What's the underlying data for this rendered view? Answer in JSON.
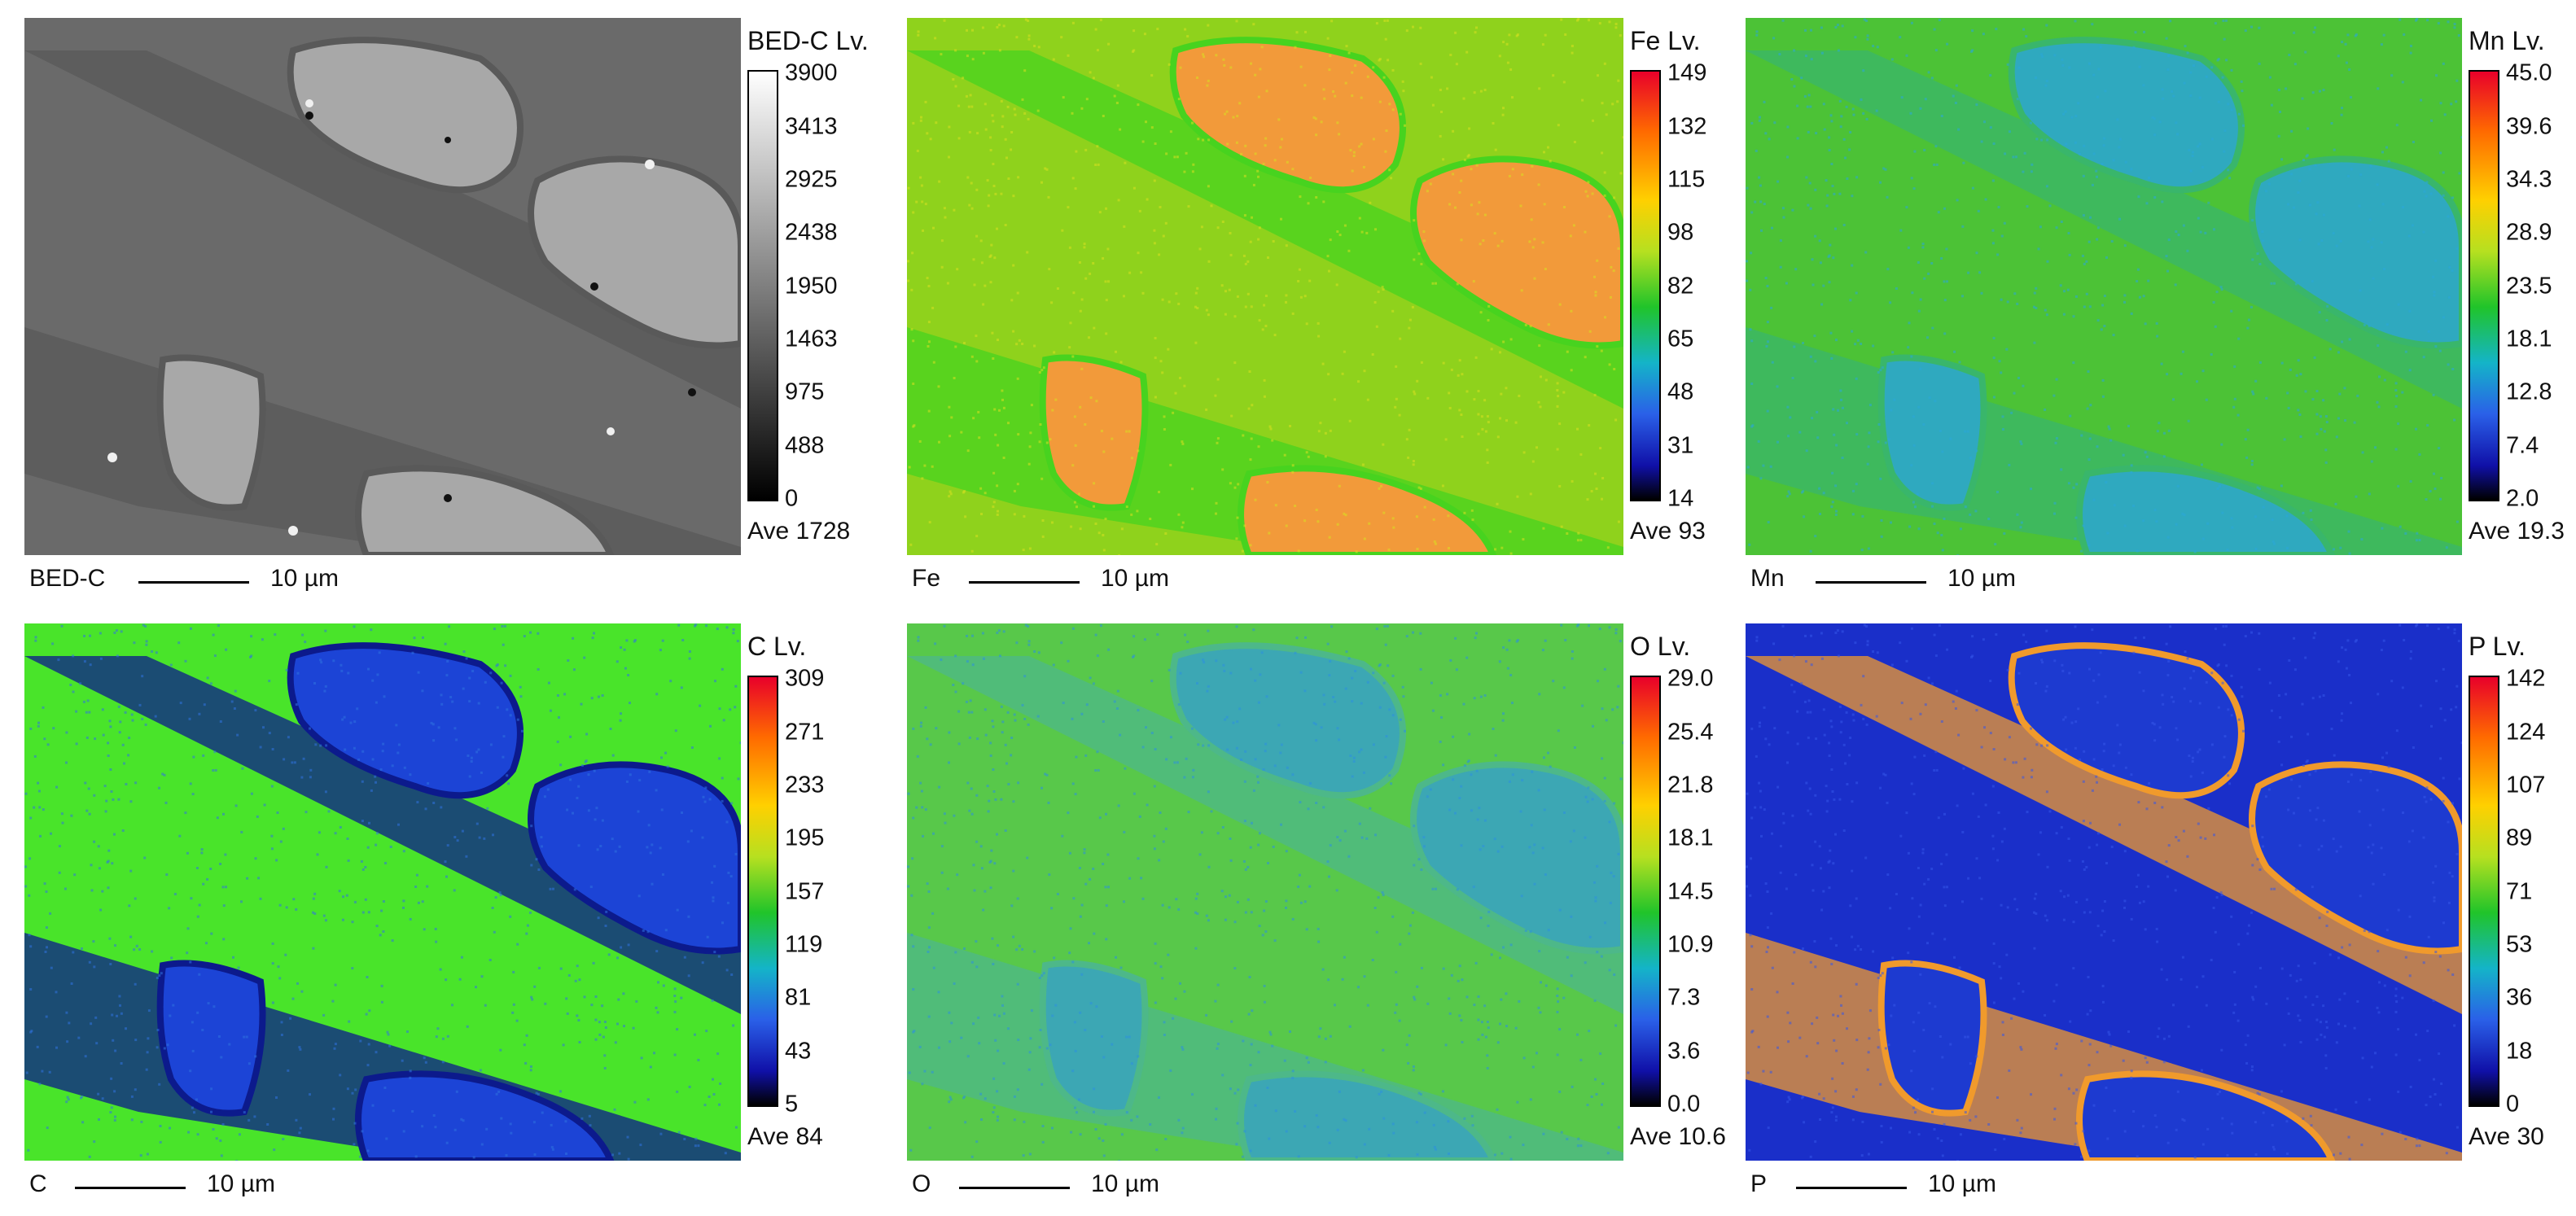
{
  "panels": [
    {
      "id": "bed",
      "label": "BED-C",
      "lv_label": "BED-C  Lv.",
      "colormap": "gray",
      "ticks": [
        "3900",
        "3413",
        "2925",
        "2438",
        "1950",
        "1463",
        "975",
        "488",
        "0"
      ],
      "average": "Ave 1728",
      "scale_label": "10 µm",
      "colors": {
        "matrix": "#6a6a6a",
        "particle": "#a8a8a8",
        "border": "#595959",
        "dark": "#111111",
        "light": "#f0f0f0"
      }
    },
    {
      "id": "fe",
      "label": "Fe",
      "lv_label": "Fe  Lv.",
      "colormap": "jet",
      "ticks": [
        "149",
        "132",
        "115",
        "98",
        "82",
        "65",
        "48",
        "31",
        "14"
      ],
      "average": "Ave 93",
      "scale_label": "10 µm",
      "colors": {
        "matrix": "#8fd21c",
        "particle": "#f29a3a",
        "border": "#47d31f",
        "speckle": "#d8e020"
      }
    },
    {
      "id": "mn",
      "label": "Mn",
      "lv_label": "Mn  Lv.",
      "colormap": "jet",
      "ticks": [
        "45.0",
        "39.6",
        "34.3",
        "28.9",
        "23.5",
        "18.1",
        "12.8",
        "7.4",
        "2.0"
      ],
      "average": "Ave 19.3",
      "scale_label": "10 µm",
      "colors": {
        "matrix": "#4cc236",
        "particle": "#2fa9bf",
        "border": "#39b66b",
        "speckle": "#2aa8d8"
      }
    },
    {
      "id": "c",
      "label": "C",
      "lv_label": "C  Lv.",
      "colormap": "jet",
      "ticks": [
        "309",
        "271",
        "233",
        "195",
        "157",
        "119",
        "81",
        "43",
        "5"
      ],
      "average": "Ave 84",
      "scale_label": "10 µm",
      "colors": {
        "matrix": "#49e42a",
        "particle": "#1c44d6",
        "border": "#0c1a8c",
        "speckle": "#2f72e0"
      }
    },
    {
      "id": "o",
      "label": "O",
      "lv_label": "O  Lv.",
      "colormap": "jet",
      "ticks": [
        "29.0",
        "25.4",
        "21.8",
        "18.1",
        "14.5",
        "10.9",
        "7.3",
        "3.6",
        "0.0"
      ],
      "average": "Ave 10.6",
      "scale_label": "10 µm",
      "colors": {
        "matrix": "#58c84a",
        "particle": "#3ca7b4",
        "border": "#4db889",
        "speckle": "#2b8fe0"
      }
    },
    {
      "id": "p",
      "label": "P",
      "lv_label": "P  Lv.",
      "colormap": "jet",
      "ticks": [
        "142",
        "124",
        "107",
        "89",
        "71",
        "53",
        "36",
        "18",
        "0"
      ],
      "average": "Ave 30",
      "scale_label": "10 µm",
      "colors": {
        "matrix": "#1a2fc9",
        "particle": "#1d3ad0",
        "border": "#f09a2c",
        "speckle": "#3455e8"
      }
    }
  ]
}
